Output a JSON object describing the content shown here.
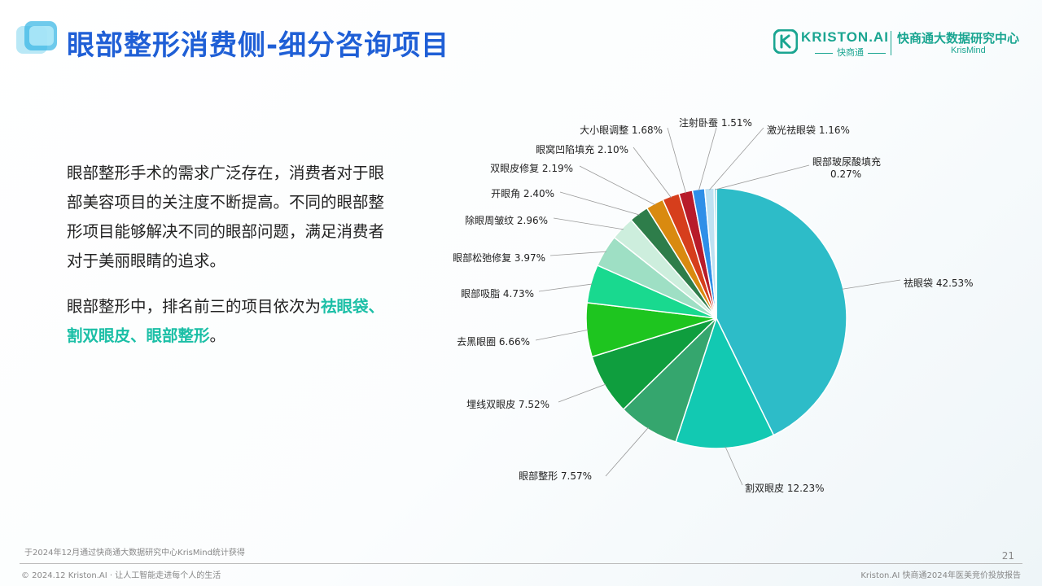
{
  "header": {
    "title": "眼部整形消费侧-细分咨询项目"
  },
  "brand": {
    "name": "KRISTON.AI",
    "sub": "快商通",
    "center_cn": "快商通大数据研究中心",
    "center_en": "KrisMind",
    "accent_color": "#1aa591"
  },
  "body": {
    "paragraph1": "眼部整形手术的需求广泛存在，消费者对于眼部美容项目的关注度不断提高。不同的眼部整形项目能够解决不同的眼部问题，满足消费者对于美丽眼睛的追求。",
    "paragraph2_prefix": "眼部整形中，排名前三的项目依次为",
    "paragraph2_highlight": "祛眼袋、割双眼皮、眼部整形",
    "paragraph2_suffix": "。",
    "title_color": "#1f5fd6",
    "highlight_color": "#1bbfa6"
  },
  "chart_data": {
    "type": "pie",
    "slices": [
      {
        "name": "祛眼袋",
        "value": 42.53,
        "label": "祛眼袋 42.53%",
        "color": "#2dbcc8"
      },
      {
        "name": "割双眼皮",
        "value": 12.23,
        "label": "割双眼皮 12.23%",
        "color": "#12c9b2"
      },
      {
        "name": "眼部整形",
        "value": 7.57,
        "label": "眼部整形 7.57%",
        "color": "#35a66e"
      },
      {
        "name": "埋线双眼皮",
        "value": 7.52,
        "label": "埋线双眼皮 7.52%",
        "color": "#0f9e3e"
      },
      {
        "name": "去黑眼圈",
        "value": 6.66,
        "label": "去黑眼圈 6.66%",
        "color": "#1ec51f"
      },
      {
        "name": "眼部吸脂",
        "value": 4.73,
        "label": "眼部吸脂 4.73%",
        "color": "#19d98f"
      },
      {
        "name": "眼部松弛修复",
        "value": 3.97,
        "label": "眼部松弛修复 3.97%",
        "color": "#9edfc4"
      },
      {
        "name": "除眼周皱纹",
        "value": 2.96,
        "label": "除眼周皱纹 2.96%",
        "color": "#cdeedd"
      },
      {
        "name": "开眼角",
        "value": 2.4,
        "label": "开眼角 2.40%",
        "color": "#2e7d4a"
      },
      {
        "name": "双眼皮修复",
        "value": 2.19,
        "label": "双眼皮修复 2.19%",
        "color": "#d98a10"
      },
      {
        "name": "眼窝凹陷填充",
        "value": 2.1,
        "label": "眼窝凹陷填充 2.10%",
        "color": "#d63e1c"
      },
      {
        "name": "大小眼调整",
        "value": 1.68,
        "label": "大小眼调整 1.68%",
        "color": "#b81b2a"
      },
      {
        "name": "注射卧蚕",
        "value": 1.51,
        "label": "注射卧蚕 1.51%",
        "color": "#2f8fe8"
      },
      {
        "name": "激光祛眼袋",
        "value": 1.16,
        "label": "激光祛眼袋 1.16%",
        "color": "#bfe1f2"
      },
      {
        "name": "眼部玻尿酸填充",
        "value": 0.27,
        "label": "眼部玻尿酸填充 0.27%",
        "color": "#7fd0e2"
      }
    ]
  },
  "footer": {
    "source": "于2024年12月通过快商通大数据研究中心KrisMind统计获得",
    "left": "© 2024.12 Kriston.AI · 让人工智能走进每个人的生活",
    "right": "Kriston.AI 快商通2024年医美竞价投放报告",
    "page": "21"
  }
}
